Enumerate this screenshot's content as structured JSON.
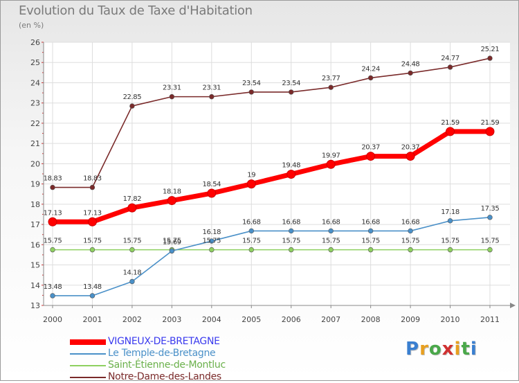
{
  "header": {
    "title": "Evolution du Taux de Taxe d'Habitation",
    "subtitle": "(en %)"
  },
  "brand": {
    "letters": [
      "P",
      "r",
      "o",
      "x",
      "i",
      "t",
      "i"
    ],
    "colors": [
      "#3a7fd0",
      "#e8a020",
      "#4aa84a",
      "#d03030",
      "#e8a020",
      "#4aa84a",
      "#3a7fd0"
    ]
  },
  "chart_data": {
    "type": "line",
    "title": "Evolution du Taux de Taxe d'Habitation",
    "ylabel": "(en %)",
    "xlabel": "",
    "x": [
      "2000",
      "2001",
      "2002",
      "2003",
      "2004",
      "2005",
      "2006",
      "2007",
      "2008",
      "2009",
      "2010",
      "2011"
    ],
    "ylim": [
      13,
      26
    ],
    "yticks": [
      "13",
      "14",
      "15",
      "16",
      "17",
      "18",
      "19",
      "20",
      "21",
      "22",
      "23",
      "24",
      "25",
      "26"
    ],
    "grid": true,
    "legend": "bottom-left",
    "series": [
      {
        "name": "VIGNEUX-DE-BRETAGNE",
        "color": "#ff0000",
        "legend_color": "#3a3aee",
        "values": [
          17.13,
          17.13,
          17.82,
          18.18,
          18.54,
          19,
          19.48,
          19.97,
          20.37,
          20.37,
          21.59,
          21.59
        ],
        "labels": [
          "17.13",
          "17.13",
          "17.82",
          "18.18",
          "18.54",
          "19",
          "19.48",
          "19.97",
          "20.37",
          "20.37",
          "21.59",
          "21.59"
        ]
      },
      {
        "name": "Le Temple-de-Bretagne",
        "color": "#4a90c8",
        "legend_color": "#4a90c8",
        "values": [
          13.48,
          13.48,
          14.18,
          15.69,
          16.18,
          16.68,
          16.68,
          16.68,
          16.68,
          16.68,
          17.18,
          17.35
        ],
        "labels": [
          "13.48",
          "13.48",
          "14.18",
          "15.69",
          "16.18",
          "16.68",
          "16.68",
          "16.68",
          "16.68",
          "16.68",
          "17.18",
          "17.35"
        ]
      },
      {
        "name": "Saint-Étienne-de-Montluc",
        "color": "#8ed060",
        "legend_color": "#6ab04a",
        "values": [
          15.75,
          15.75,
          15.75,
          15.75,
          15.75,
          15.75,
          15.75,
          15.75,
          15.75,
          15.75,
          15.75,
          15.75
        ],
        "labels": [
          "15.75",
          "15.75",
          "15.75",
          "15.75",
          "15.75",
          "15.75",
          "15.75",
          "15.75",
          "15.75",
          "15.75",
          "15.75",
          "15.75"
        ]
      },
      {
        "name": "Notre-Dame-des-Landes",
        "color": "#7a2a2a",
        "legend_color": "#7a2a2a",
        "values": [
          18.83,
          18.83,
          22.85,
          23.31,
          23.31,
          23.54,
          23.54,
          23.77,
          24.24,
          24.48,
          24.77,
          25.21
        ],
        "labels": [
          "18.83",
          "18.83",
          "22.85",
          "23.31",
          "23.31",
          "23.54",
          "23.54",
          "23.77",
          "24.24",
          "24.48",
          "24.77",
          "25.21"
        ]
      }
    ]
  }
}
